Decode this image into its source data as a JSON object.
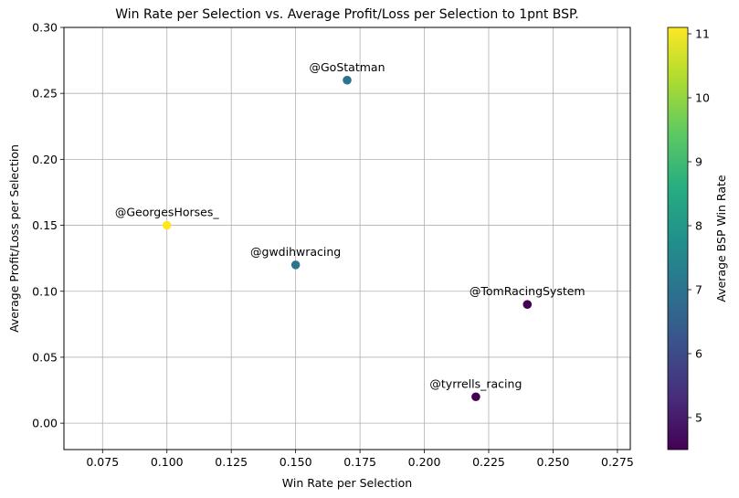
{
  "chart_data": {
    "type": "scatter",
    "title": "Win Rate per Selection vs. Average Profit/Loss per Selection to 1pnt BSP.",
    "xlabel": "Win Rate per Selection",
    "ylabel": "Average Profit/Loss per Selection",
    "xlim": [
      0.06,
      0.28
    ],
    "ylim": [
      -0.02,
      0.3
    ],
    "xticks": [
      "0.075",
      "0.100",
      "0.125",
      "0.150",
      "0.175",
      "0.200",
      "0.225",
      "0.250",
      "0.275"
    ],
    "yticks": [
      "0.00",
      "0.05",
      "0.10",
      "0.15",
      "0.20",
      "0.25",
      "0.30"
    ],
    "grid": true,
    "points": [
      {
        "label": "@GoStatman",
        "x": 0.17,
        "y": 0.26,
        "color_value": 7.0
      },
      {
        "label": "@GeorgesHorses_",
        "x": 0.1,
        "y": 0.15,
        "color_value": 11.1
      },
      {
        "label": "@gwdihwracing",
        "x": 0.15,
        "y": 0.12,
        "color_value": 7.0
      },
      {
        "label": "@TomRacingSystem",
        "x": 0.24,
        "y": 0.09,
        "color_value": 4.5
      },
      {
        "label": "@tyrrells_racing",
        "x": 0.22,
        "y": 0.02,
        "color_value": 4.5
      }
    ],
    "colorbar": {
      "label": "Average BSP Win Rate",
      "range": [
        4.5,
        11.1
      ],
      "ticks": [
        "5",
        "6",
        "7",
        "8",
        "9",
        "10",
        "11"
      ],
      "colormap": "viridis"
    }
  }
}
